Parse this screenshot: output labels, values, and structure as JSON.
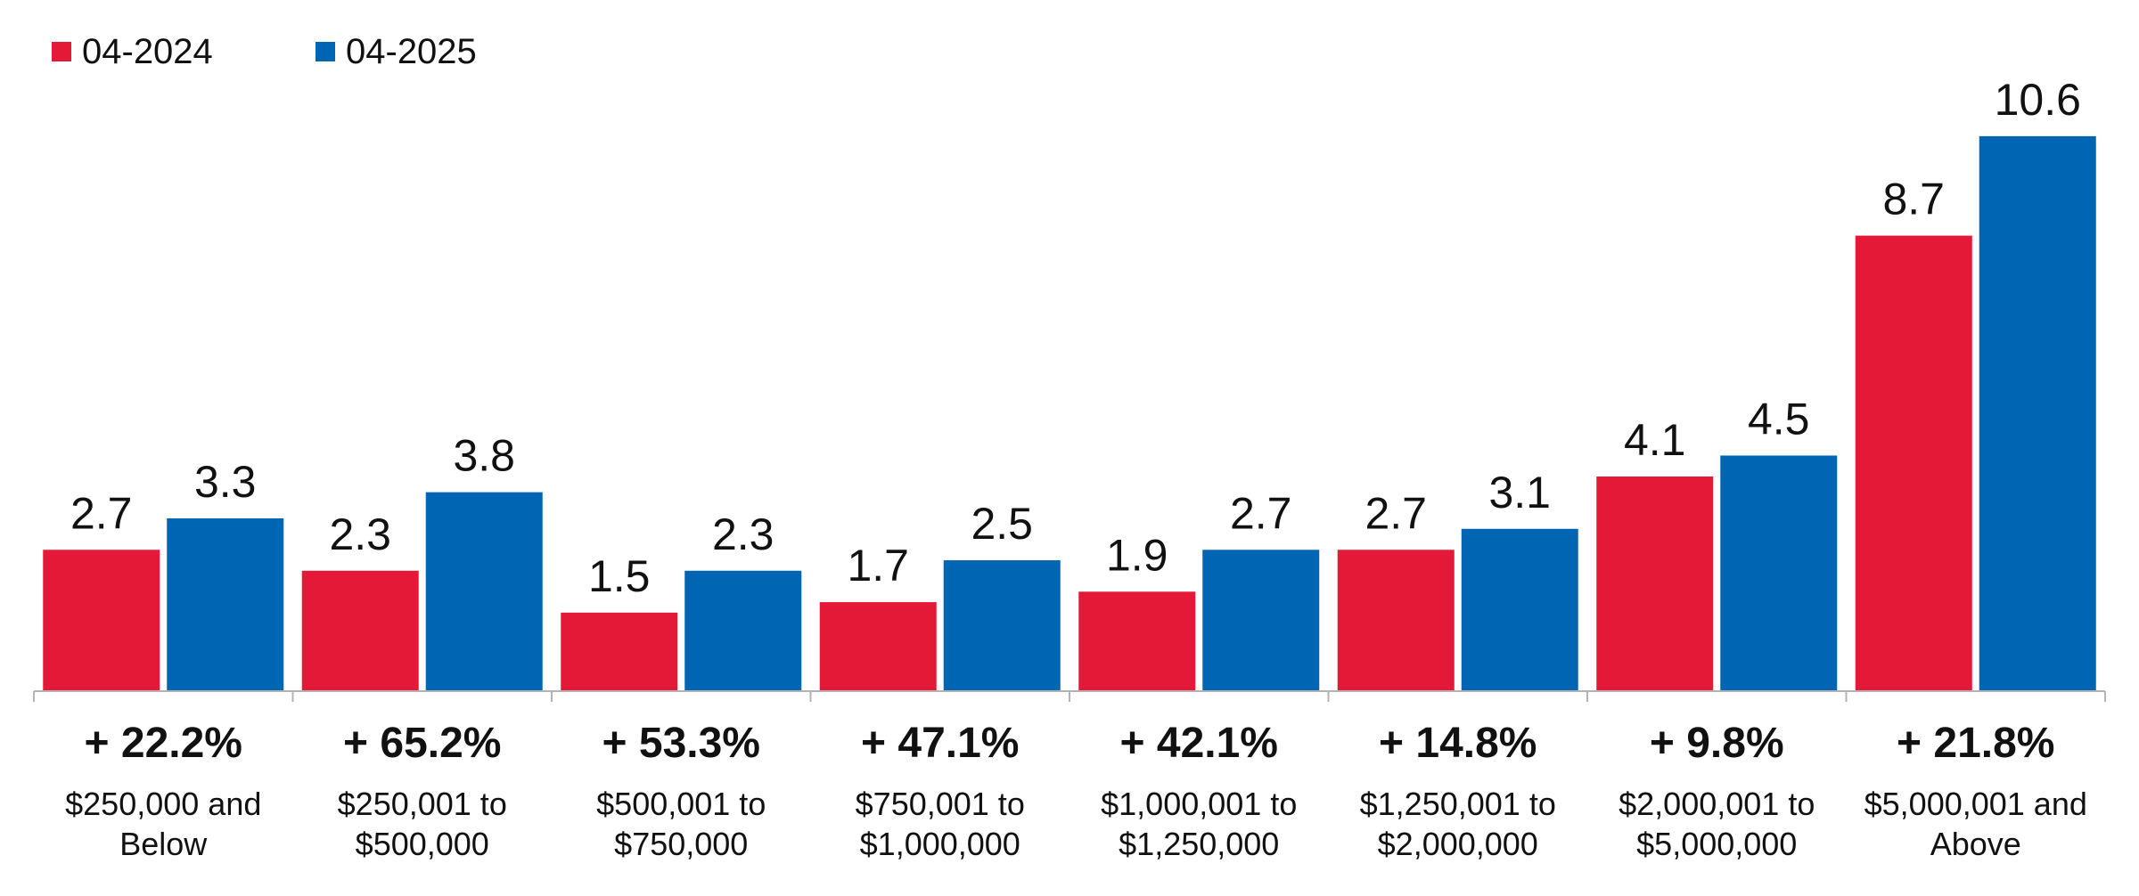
{
  "colors": {
    "series_2024": "#e31937",
    "series_2025": "#0066b3",
    "axis": "#b3b3b3"
  },
  "chart_data": {
    "type": "bar",
    "title": "",
    "xlabel": "",
    "ylabel": "",
    "ylim": [
      0,
      11.5
    ],
    "grid": false,
    "legend_position": "top-left",
    "categories": [
      [
        "$250,000 and",
        "Below"
      ],
      [
        "$250,001 to",
        "$500,000"
      ],
      [
        "$500,001 to",
        "$750,000"
      ],
      [
        "$750,001 to",
        "$1,000,000"
      ],
      [
        "$1,000,001 to",
        "$1,250,000"
      ],
      [
        "$1,250,001 to",
        "$2,000,000"
      ],
      [
        "$2,000,001 to",
        "$5,000,000"
      ],
      [
        "$5,000,001 and",
        "Above"
      ]
    ],
    "series": [
      {
        "name": "04-2024",
        "values": [
          2.7,
          2.3,
          1.5,
          1.7,
          1.9,
          2.7,
          4.1,
          8.7
        ]
      },
      {
        "name": "04-2025",
        "values": [
          3.3,
          3.8,
          2.3,
          2.5,
          2.7,
          3.1,
          4.5,
          10.6
        ]
      }
    ],
    "value_labels": [
      [
        "2.7",
        "2.3",
        "1.5",
        "1.7",
        "1.9",
        "2.7",
        "4.1",
        "8.7"
      ],
      [
        "3.3",
        "3.8",
        "2.3",
        "2.5",
        "2.7",
        "3.1",
        "4.5",
        "10.6"
      ]
    ],
    "change_labels": [
      "+ 22.2%",
      "+ 65.2%",
      "+ 53.3%",
      "+ 47.1%",
      "+ 42.1%",
      "+ 14.8%",
      "+ 9.8%",
      "+ 21.8%"
    ]
  }
}
